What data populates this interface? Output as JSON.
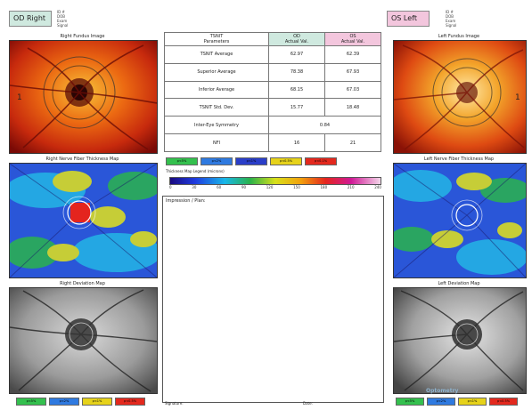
{
  "right_eye": {
    "badge": "OD Right",
    "meta": [
      "ID #",
      "DOB",
      "Exam",
      "Signal"
    ],
    "fundus_label": "Right Fundus Image",
    "rnfl_label": "Right Nerve Fiber Thickness Map",
    "deviation_label": "Right Deviation Map",
    "fundus_marker": "1"
  },
  "left_eye": {
    "badge": "OS Left",
    "meta": [
      "ID #",
      "DOB",
      "Exam",
      "Signal"
    ],
    "fundus_label": "Left Fundus Image",
    "rnfl_label": "Left Nerve Fiber Thickness Map",
    "deviation_label": "Left Deviation Map",
    "fundus_marker": "1"
  },
  "params_table": {
    "col1": "TSNIT",
    "col1b": "Parameters",
    "od_head": "OD",
    "od_sub": "Actual Val.",
    "os_head": "OS",
    "os_sub": "Actual Val.",
    "rows": [
      {
        "label": "TSNIT Average",
        "od": "62.97",
        "os": "62.39"
      },
      {
        "label": "Superior Average",
        "od": "78.38",
        "os": "67.93"
      },
      {
        "label": "Inferior Average",
        "od": "68.15",
        "os": "67.03"
      },
      {
        "label": "TSNIT Std. Dev.",
        "od": "15.77",
        "os": "18.48"
      }
    ],
    "symmetry_label": "Inter-Eye Symmetry",
    "symmetry_value": "0.84",
    "nfi_label": "NFI",
    "nfi_od": "16",
    "nfi_os": "21"
  },
  "legend_top": [
    "p<5%",
    "p<2%",
    "p<1%",
    "p<0.5%",
    "p<0.1%"
  ],
  "legend_bottom_left": [
    "p<5%",
    "p<2%",
    "p<1%",
    "p<0.5%"
  ],
  "legend_bottom_right": [
    "p<5%",
    "p<2%",
    "p<1%",
    "p<0.5%"
  ],
  "thickness_title": "Thickness Map Legend (microns)",
  "scale_ticks": [
    "0",
    "30",
    "60",
    "90",
    "120",
    "150",
    "180",
    "210",
    "240"
  ],
  "impression_title": "Impression / Plan:",
  "signature_label": "Signature:",
  "date_label": "Date:",
  "watermark": "Optometry",
  "colors": {
    "od_accent": "#cfe9df",
    "os_accent": "#f3c6dd"
  }
}
